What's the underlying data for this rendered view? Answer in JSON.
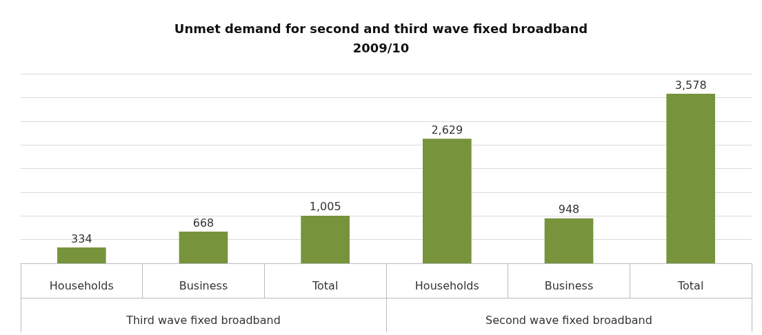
{
  "chart_data": {
    "type": "bar",
    "title": "Unmet demand for second and third wave fixed broadband\n2009/10",
    "categories": [
      "Households",
      "Business",
      "Total",
      "Households",
      "Business",
      "Total"
    ],
    "values": [
      334,
      668,
      1005,
      2629,
      948,
      3578
    ],
    "color": "#77933c",
    "ylim": [
      0,
      4000
    ],
    "yticks": [
      0,
      500,
      1000,
      1500,
      2000,
      2500,
      3000,
      3500,
      4000
    ],
    "value_labels": [
      "334",
      "668",
      "1,005",
      "2,629",
      "948",
      "3,578"
    ],
    "tick_labels": "x",
    "grid": "y",
    "annotations": [
      "Third wave fixed broadband",
      "Second wave fixed broadband"
    ]
  }
}
